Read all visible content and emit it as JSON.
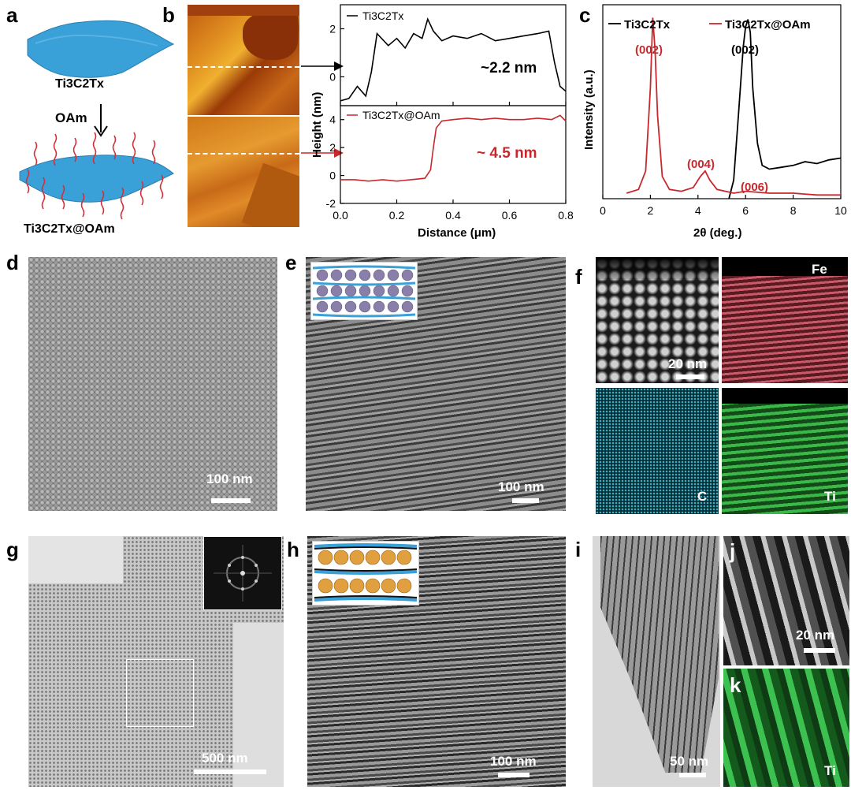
{
  "panels": {
    "a": {
      "letter": "a",
      "top_label": "Ti3C2Tx",
      "arrow_label": "OAm",
      "bottom_label": "Ti3C2Tx@OAm"
    },
    "b": {
      "letter": "b",
      "series": [
        {
          "name": "Ti3C2Tx",
          "annotation": "~2.2 nm",
          "color": "#000000"
        },
        {
          "name": "Ti3C2Tx@OAm",
          "annotation": "~ 4.5 nm",
          "color": "#c8282d"
        }
      ],
      "ylabel": "Height (nm)",
      "xlabel": "Distance (μm)",
      "xticks": [
        "0.0",
        "0.2",
        "0.4",
        "0.6",
        "0.8"
      ],
      "top_yticks": [
        "0",
        "2"
      ],
      "bottom_yticks": [
        "-2",
        "0",
        "2",
        "4"
      ]
    },
    "c": {
      "letter": "c",
      "legend": [
        "Ti3C2Tx",
        "Ti3C2Tx@OAm"
      ],
      "ylabel": "Intensity (a.u.)",
      "xlabel": "2θ (deg.)",
      "xticks": [
        "0",
        "2",
        "4",
        "6",
        "8",
        "10"
      ],
      "peak_labels_red": [
        "(002)",
        "(004)",
        "(006)"
      ],
      "peak_labels_black": [
        "(002)"
      ]
    },
    "d": {
      "letter": "d",
      "scalebar": "100 nm"
    },
    "e": {
      "letter": "e",
      "scalebar": "100 nm"
    },
    "f": {
      "letter": "f",
      "scalebar": "20 nm",
      "elements": [
        "Fe",
        "C",
        "Ti"
      ]
    },
    "g": {
      "letter": "g",
      "scalebar": "500 nm"
    },
    "h": {
      "letter": "h",
      "scalebar": "100 nm"
    },
    "i": {
      "letter": "i",
      "scalebar": "50 nm"
    },
    "j": {
      "letter": "j",
      "scalebar": "20 nm"
    },
    "k": {
      "letter": "k",
      "element": "Ti"
    }
  },
  "chart_data": [
    {
      "type": "line",
      "panel": "b-top",
      "series": [
        {
          "name": "Ti3C2Tx",
          "x": [
            0.0,
            0.03,
            0.06,
            0.09,
            0.11,
            0.13,
            0.17,
            0.2,
            0.23,
            0.26,
            0.29,
            0.31,
            0.33,
            0.36,
            0.4,
            0.45,
            0.5,
            0.55,
            0.6,
            0.65,
            0.7,
            0.74,
            0.76,
            0.78,
            0.8
          ],
          "y": [
            -1.0,
            -0.9,
            -0.4,
            -0.8,
            0.2,
            1.8,
            1.3,
            1.6,
            1.2,
            1.8,
            1.6,
            2.4,
            1.9,
            1.5,
            1.7,
            1.6,
            1.8,
            1.5,
            1.6,
            1.7,
            1.8,
            1.9,
            0.6,
            -0.4,
            -0.6
          ]
        }
      ],
      "xlim": [
        0,
        0.8
      ],
      "ylim": [
        -1.2,
        3.0
      ]
    },
    {
      "type": "line",
      "panel": "b-bottom",
      "series": [
        {
          "name": "Ti3C2Tx@OAm",
          "x": [
            0.0,
            0.05,
            0.1,
            0.15,
            0.2,
            0.25,
            0.3,
            0.32,
            0.33,
            0.34,
            0.36,
            0.4,
            0.45,
            0.5,
            0.55,
            0.6,
            0.65,
            0.7,
            0.75,
            0.78,
            0.8
          ],
          "y": [
            -0.3,
            -0.3,
            -0.4,
            -0.3,
            -0.4,
            -0.3,
            -0.2,
            0.4,
            2.0,
            3.4,
            3.9,
            4.0,
            4.1,
            4.0,
            4.1,
            4.0,
            4.0,
            4.1,
            4.0,
            4.3,
            3.9
          ]
        }
      ],
      "xlim": [
        0,
        0.8
      ],
      "ylim": [
        -2,
        5
      ]
    },
    {
      "type": "line",
      "panel": "c",
      "series": [
        {
          "name": "Ti3C2Tx",
          "x": [
            5.3,
            5.5,
            5.7,
            5.9,
            6.0,
            6.1,
            6.2,
            6.3,
            6.5,
            6.7,
            7.0,
            7.5,
            8.0,
            8.5,
            9.0,
            9.5,
            10.0
          ],
          "y": [
            0.0,
            0.1,
            0.45,
            0.82,
            0.93,
            0.97,
            0.9,
            0.6,
            0.3,
            0.18,
            0.16,
            0.17,
            0.18,
            0.2,
            0.19,
            0.21,
            0.22
          ]
        },
        {
          "name": "Ti3C2Tx@OAm",
          "x": [
            1.0,
            1.5,
            1.8,
            2.0,
            2.1,
            2.2,
            2.3,
            2.5,
            2.8,
            3.3,
            3.8,
            4.1,
            4.3,
            4.5,
            4.8,
            5.5,
            6.0,
            7.0,
            8.0,
            9.0,
            10.0
          ],
          "y": [
            0.03,
            0.05,
            0.15,
            0.6,
            0.98,
            0.8,
            0.45,
            0.12,
            0.05,
            0.04,
            0.06,
            0.12,
            0.15,
            0.1,
            0.05,
            0.03,
            0.04,
            0.03,
            0.03,
            0.02,
            0.02
          ]
        }
      ],
      "xlim": [
        0,
        10
      ],
      "ylim": [
        0,
        1.05
      ]
    }
  ]
}
